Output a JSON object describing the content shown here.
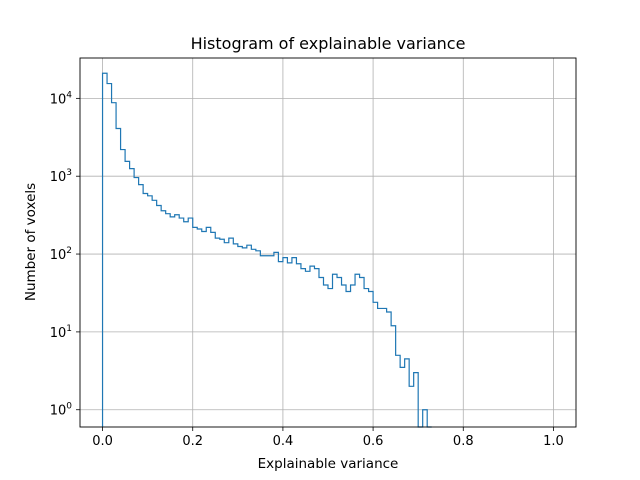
{
  "chart_data": {
    "type": "histogram",
    "title": "Histogram of explainable variance",
    "xlabel": "Explainable variance",
    "ylabel": "Number of voxels",
    "xlim": [
      -0.05,
      1.05
    ],
    "ylim": [
      0.6,
      33000
    ],
    "yscale": "log",
    "grid": true,
    "color": "#1f77b4",
    "x_ticks": [
      {
        "value": 0.0,
        "label": "0.0"
      },
      {
        "value": 0.2,
        "label": "0.2"
      },
      {
        "value": 0.4,
        "label": "0.4"
      },
      {
        "value": 0.6,
        "label": "0.6"
      },
      {
        "value": 0.8,
        "label": "0.8"
      },
      {
        "value": 1.0,
        "label": "1.0"
      }
    ],
    "y_ticks": [
      {
        "value": 1,
        "mant": "10",
        "exp": "0"
      },
      {
        "value": 10,
        "mant": "10",
        "exp": "1"
      },
      {
        "value": 100,
        "mant": "10",
        "exp": "2"
      },
      {
        "value": 1000,
        "mant": "10",
        "exp": "3"
      },
      {
        "value": 10000,
        "mant": "10",
        "exp": "4"
      }
    ],
    "bin_start": 0.0,
    "bin_width": 0.01,
    "counts": [
      21000,
      15500,
      8800,
      4100,
      2200,
      1550,
      1250,
      960,
      780,
      600,
      560,
      490,
      420,
      360,
      330,
      300,
      320,
      290,
      260,
      290,
      220,
      210,
      195,
      220,
      190,
      160,
      155,
      140,
      160,
      135,
      125,
      120,
      130,
      115,
      110,
      95,
      95,
      95,
      105,
      80,
      90,
      77,
      90,
      75,
      65,
      60,
      70,
      65,
      50,
      40,
      36,
      55,
      50,
      40,
      33,
      40,
      55,
      50,
      36,
      33,
      24,
      20,
      20,
      18,
      12,
      5,
      3.5,
      4.5,
      2.0,
      3.0,
      0.5,
      1.0,
      0.5
    ]
  }
}
